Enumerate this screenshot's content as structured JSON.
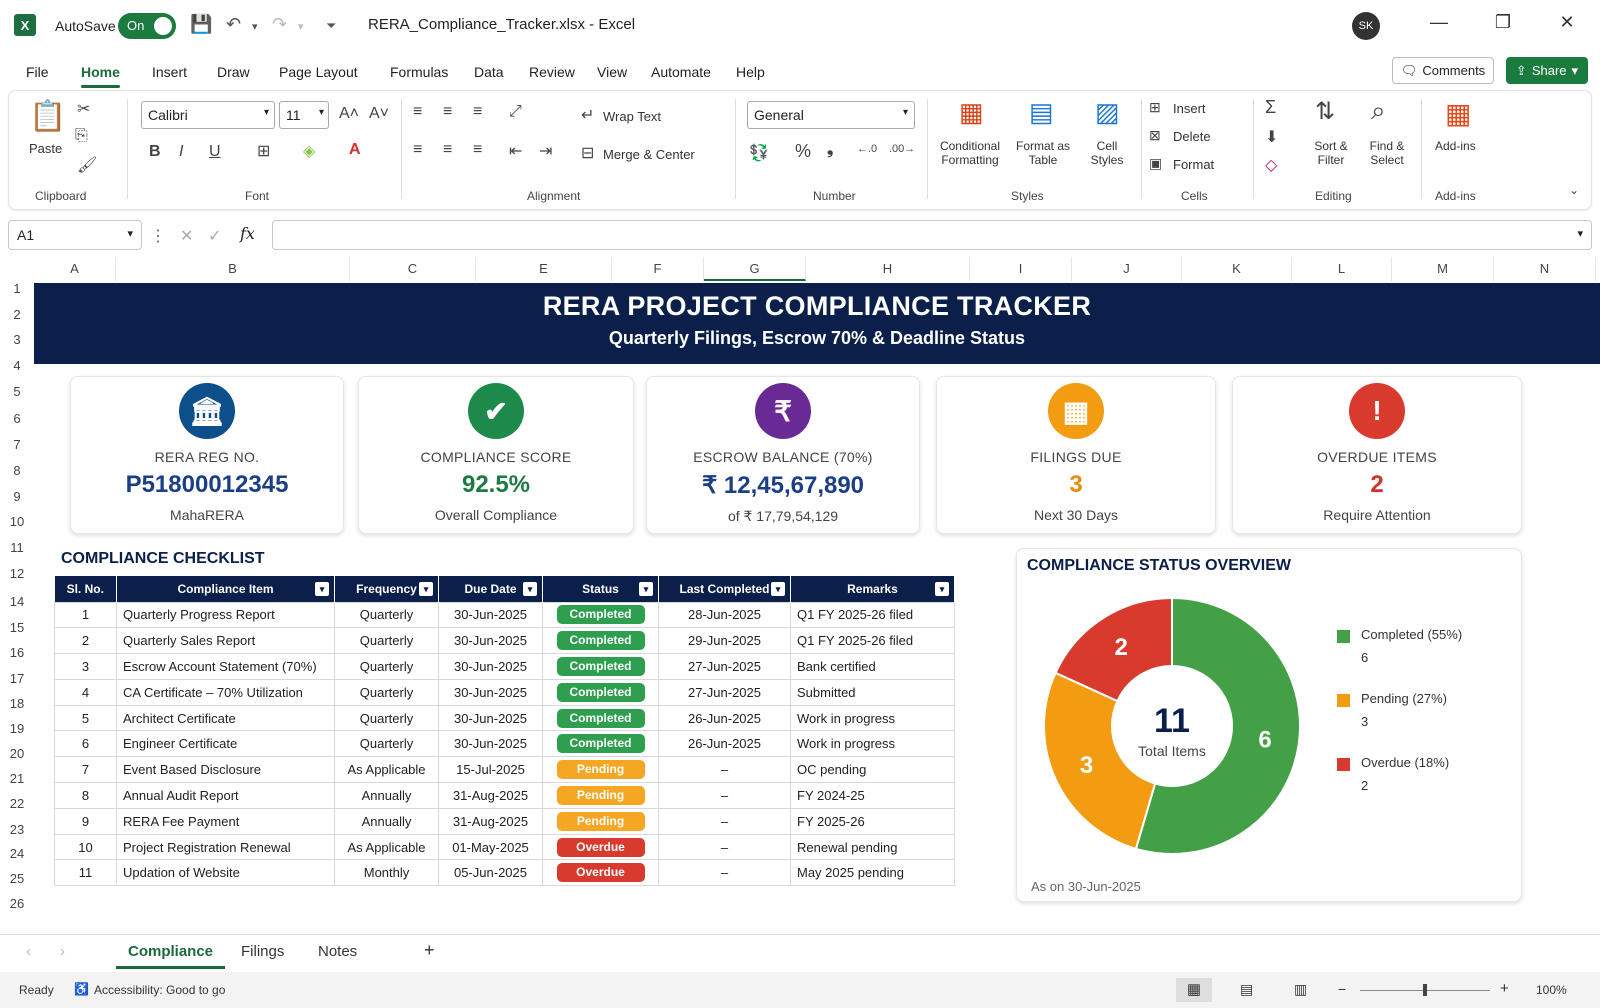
{
  "titlebar": {
    "autosave": "AutoSave",
    "toggle": "On",
    "filename": "RERA_Compliance_Tracker.xlsx  -  Excel",
    "avatar": "SK"
  },
  "menu": [
    "File",
    "Home",
    "Insert",
    "Draw",
    "Page Layout",
    "Formulas",
    "Data",
    "Review",
    "View",
    "Automate",
    "Help"
  ],
  "comments": "Comments",
  "share": "Share",
  "ribbon": {
    "paste": "Paste",
    "font_name": "Calibri",
    "font_size": "11",
    "wrap": "Wrap Text",
    "merge": "Merge & Center",
    "number_format": "General",
    "cond_fmt": [
      "Conditional",
      "Formatting"
    ],
    "format_table": [
      "Format as",
      "Table"
    ],
    "cell_styles": [
      "Cell",
      "Styles"
    ],
    "insert": "Insert",
    "delete": "Delete",
    "format": "Format",
    "sort": [
      "Sort &",
      "Filter"
    ],
    "find": [
      "Find &",
      "Select"
    ],
    "addins": "Add-ins",
    "groups": {
      "clipboard": "Clipboard",
      "font": "Font",
      "alignment": "Alignment",
      "number": "Number",
      "styles": "Styles",
      "cells": "Cells",
      "editing": "Editing",
      "addins": "Add-ins"
    }
  },
  "namebox": "A1",
  "columns": [
    "A",
    "B",
    "C",
    "E",
    "F",
    "G",
    "H",
    "I",
    "J",
    "K",
    "L",
    "M",
    "N"
  ],
  "rows": [
    "1",
    "2",
    "3",
    "4",
    "5",
    "6",
    "7",
    "8",
    "9",
    "10",
    "11",
    "12",
    "14",
    "15",
    "16",
    "17",
    "18",
    "19",
    "20",
    "21",
    "22",
    "23",
    "24",
    "25",
    "26"
  ],
  "banner": {
    "title": "RERA PROJECT COMPLIANCE TRACKER",
    "subtitle": "Quarterly Filings, Escrow 70% & Deadline Status"
  },
  "cards": [
    {
      "label": "RERA REG NO.",
      "value": "P51800012345",
      "sub": "MahaRERA",
      "color": "#0d4f8b",
      "value_color": "#1b3f86",
      "icon": "bank-icon"
    },
    {
      "label": "COMPLIANCE SCORE",
      "value": "92.5%",
      "sub": "Overall Compliance",
      "color": "#1d8a4a",
      "value_color": "#1d7a43",
      "icon": "shield-check-icon"
    },
    {
      "label": "ESCROW BALANCE (70%)",
      "value": "₹ 12,45,67,890",
      "sub": "of ₹ 17,79,54,129",
      "color": "#6a2a96",
      "value_color": "#1b3f86",
      "icon": "rupee-icon"
    },
    {
      "label": "FILINGS DUE",
      "value": "3",
      "sub": "Next 30 Days",
      "color": "#f39c12",
      "value_color": "#e98d0c",
      "icon": "calendar-icon"
    },
    {
      "label": "OVERDUE ITEMS",
      "value": "2",
      "sub": "Require Attention",
      "color": "#d83a2e",
      "value_color": "#d0332a",
      "icon": "alert-icon"
    }
  ],
  "checklist": {
    "title": "COMPLIANCE CHECKLIST",
    "headers": [
      "Sl. No.",
      "Compliance Item",
      "Frequency",
      "Due Date",
      "Status",
      "Last Completed",
      "Remarks"
    ],
    "rows": [
      [
        "1",
        "Quarterly Progress Report",
        "Quarterly",
        "30-Jun-2025",
        "Completed",
        "28-Jun-2025",
        "Q1 FY 2025-26 filed"
      ],
      [
        "2",
        "Quarterly Sales Report",
        "Quarterly",
        "30-Jun-2025",
        "Completed",
        "29-Jun-2025",
        "Q1 FY 2025-26 filed"
      ],
      [
        "3",
        "Escrow Account Statement (70%)",
        "Quarterly",
        "30-Jun-2025",
        "Completed",
        "27-Jun-2025",
        "Bank certified"
      ],
      [
        "4",
        "CA Certificate – 70% Utilization",
        "Quarterly",
        "30-Jun-2025",
        "Completed",
        "27-Jun-2025",
        "Submitted"
      ],
      [
        "5",
        "Architect Certificate",
        "Quarterly",
        "30-Jun-2025",
        "Completed",
        "26-Jun-2025",
        "Work in progress"
      ],
      [
        "6",
        "Engineer Certificate",
        "Quarterly",
        "30-Jun-2025",
        "Completed",
        "26-Jun-2025",
        "Work in progress"
      ],
      [
        "7",
        "Event Based Disclosure",
        "As Applicable",
        "15-Jul-2025",
        "Pending",
        "–",
        "OC pending"
      ],
      [
        "8",
        "Annual Audit Report",
        "Annually",
        "31-Aug-2025",
        "Pending",
        "–",
        "FY 2024-25"
      ],
      [
        "9",
        "RERA Fee Payment",
        "Annually",
        "31-Aug-2025",
        "Pending",
        "–",
        "FY 2025-26"
      ],
      [
        "10",
        "Project Registration Renewal",
        "As Applicable",
        "01-May-2025",
        "Overdue",
        "–",
        "Renewal pending"
      ],
      [
        "11",
        "Updation of Website",
        "Monthly",
        "05-Jun-2025",
        "Overdue",
        "–",
        "May 2025 pending"
      ]
    ],
    "status_colors": {
      "Completed": "#2e9e4f",
      "Pending": "#f5a623",
      "Overdue": "#d83a2e"
    }
  },
  "chart_data": {
    "type": "pie",
    "title": "COMPLIANCE STATUS OVERVIEW",
    "categories": [
      "Completed (55%)",
      "Pending (27%)",
      "Overdue (18%)"
    ],
    "values": [
      6,
      3,
      2
    ],
    "colors": [
      "#43a047",
      "#f39c12",
      "#d83a2e"
    ],
    "center_value": "11",
    "center_label": "Total Items",
    "legend": "right",
    "footnote": "As on 30-Jun-2025"
  },
  "sheets": [
    "Compliance",
    "Filings",
    "Notes"
  ],
  "status": {
    "ready": "Ready",
    "accessibility": "Accessibility: Good to go",
    "zoom": "100%"
  }
}
